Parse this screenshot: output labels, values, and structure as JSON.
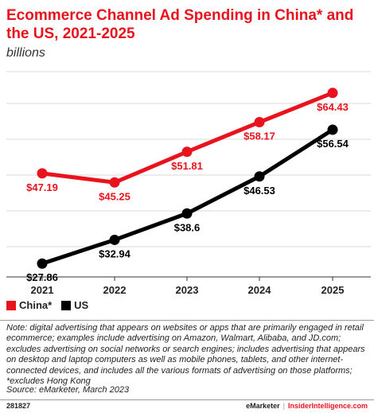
{
  "header": {
    "title": "Ecommerce Channel Ad Spending in China* and the US, 2021-2025",
    "subtitle": "billions"
  },
  "chart_data": {
    "type": "line",
    "categories": [
      "2021",
      "2022",
      "2023",
      "2024",
      "2025"
    ],
    "series": [
      {
        "name": "China*",
        "color": "#e8131d",
        "values": [
          47.19,
          45.25,
          51.81,
          58.17,
          64.43
        ],
        "labels": [
          "$47.19",
          "$45.25",
          "$51.81",
          "$58.17",
          "$64.43"
        ]
      },
      {
        "name": "US",
        "color": "#000000",
        "values": [
          27.86,
          32.94,
          38.6,
          46.53,
          56.54
        ],
        "labels": [
          "$27.86",
          "$32.94",
          "$38.6",
          "$46.53",
          "$56.54"
        ]
      }
    ],
    "ylim": [
      25,
      69
    ],
    "grid": true,
    "legend_position": "bottom-left"
  },
  "note": "Note: digital advertising that appears on websites or apps that are primarily engaged in retail ecommerce; examples include advertising on Amazon, Walmart, Alibaba, and JD.com; excludes advertising on social networks or search engines; includes advertising that appears on desktop and laptop computers as well as mobile phones, tablets, and other internet-connected devices, and includes all the various formats of advertising on those platforms; *excludes Hong Kong",
  "source": "Source: eMarketer, March 2023",
  "footer": {
    "id": "281827",
    "brand": "eMarketer",
    "separator": "|",
    "brand2": "InsiderIntelligence.com"
  }
}
